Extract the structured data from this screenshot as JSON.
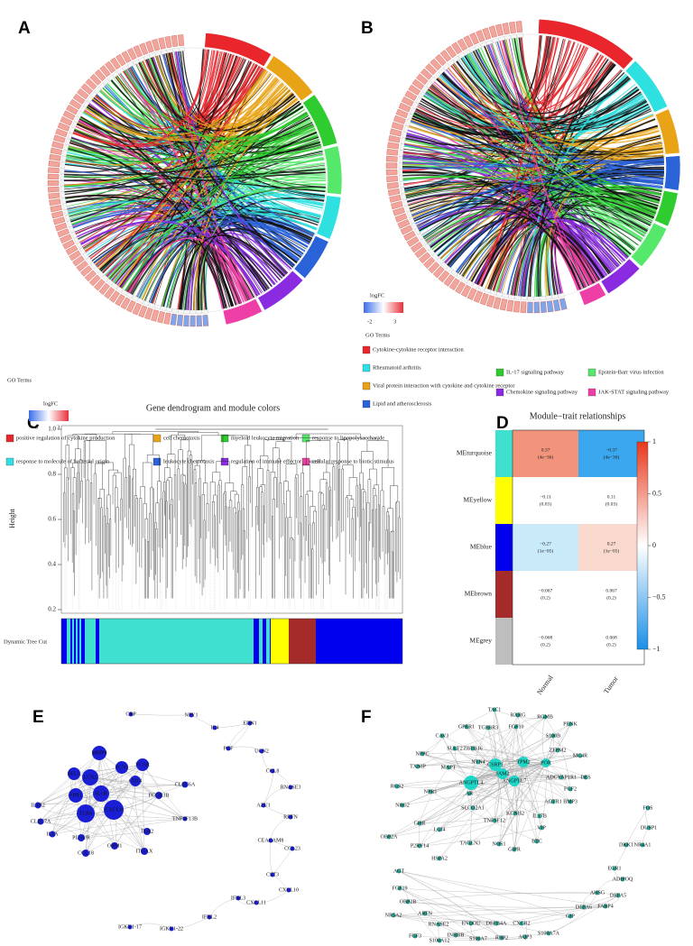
{
  "panels": {
    "A": {
      "label": "A",
      "legend_title": "GO Terms",
      "colorbar_title": "logFC",
      "colorbar_ticks": [
        "-3",
        "3"
      ],
      "terms": [
        {
          "name": "positive regulation of cytokine production",
          "color": "#e8262b"
        },
        {
          "name": "cell chemotaxis",
          "color": "#e8a317"
        },
        {
          "name": "myeloid leukocyte migration",
          "color": "#2ecc2e"
        },
        {
          "name": "response to lipopolysaccharide",
          "color": "#55e86a"
        },
        {
          "name": "response to molecule of bacterial origin",
          "color": "#2fe0e0"
        },
        {
          "name": "leukocyte chemotaxis",
          "color": "#2a62d8"
        },
        {
          "name": "regulation of immune effector process",
          "color": "#8a2be2"
        },
        {
          "name": "cellular response to biotic stimulus",
          "color": "#ee3fa6"
        }
      ]
    },
    "B": {
      "label": "B",
      "legend_title": "GO Terms",
      "colorbar_title": "logFC",
      "colorbar_ticks": [
        "-2",
        "3"
      ],
      "terms": [
        {
          "name": "Cytokine-cytokine receptor interaction",
          "color": "#e8262b"
        },
        {
          "name": "Rheumatoid arthritis",
          "color": "#2fe0e0"
        },
        {
          "name": "Viral protein interaction with cytokine and cytokine receptor",
          "color": "#e8a317"
        },
        {
          "name": "Lipid and atherosclerosis",
          "color": "#2a62d8"
        },
        {
          "name": "IL-17 signaling pathway",
          "color": "#2ecc2e"
        },
        {
          "name": "Epstein-Barr virus infection",
          "color": "#55e86a"
        },
        {
          "name": "Chemokine signaling pathway",
          "color": "#8a2be2"
        },
        {
          "name": "JAK-STAT signaling pathway",
          "color": "#ee3fa6"
        }
      ]
    },
    "C": {
      "label": "C",
      "title": "Gene dendrogram and module colors",
      "y_axis_label": "Height",
      "y_ticks": [
        "1.0",
        "0.8",
        "0.6",
        "0.4",
        "0.2"
      ],
      "color_row_label": "Dynamic Tree Cut"
    },
    "D": {
      "label": "D",
      "title": "Module−trait relationships",
      "traits": [
        "Normal",
        "Tumor"
      ],
      "modules": [
        {
          "name": "MEturquoise",
          "color": "#40e0d0"
        },
        {
          "name": "MEyellow",
          "color": "#ffff00"
        },
        {
          "name": "MEblue",
          "color": "#0000ee"
        },
        {
          "name": "MEbrown",
          "color": "#a52a2a"
        },
        {
          "name": "MEgrey",
          "color": "#bebebe"
        }
      ],
      "cells": [
        [
          {
            "r": "0.37",
            "p": "(4e−36)",
            "color": "#f2937c"
          },
          {
            "r": "−0.37",
            "p": "(4e−36)",
            "color": "#3ba7ef"
          }
        ],
        [
          {
            "r": "−0.11",
            "p": "(0.03)",
            "color": "#ffffff"
          },
          {
            "r": "0.11",
            "p": "(0.03)",
            "color": "#ffffff"
          }
        ],
        [
          {
            "r": "−0.27",
            "p": "(1e−05)",
            "color": "#c9ebf9"
          },
          {
            "r": "0.27",
            "p": "(1e−05)",
            "color": "#f9d8cd"
          }
        ],
        [
          {
            "r": "−0.067",
            "p": "(0.2)",
            "color": "#ffffff"
          },
          {
            "r": "0.067",
            "p": "(0.2)",
            "color": "#ffffff"
          }
        ],
        [
          {
            "r": "−0.068",
            "p": "(0.2)",
            "color": "#ffffff"
          },
          {
            "r": "0.068",
            "p": "(0.2)",
            "color": "#ffffff"
          }
        ]
      ],
      "colorbar_ticks": [
        "1",
        "0.5",
        "0",
        "−0.5",
        "−1"
      ]
    },
    "E": {
      "label": "E",
      "nodes": [
        "CRP",
        "NPY1",
        "IL4",
        "EDN1",
        "PGF",
        "UCN2",
        "CCL8",
        "RNASE3",
        "AZU1",
        "RETN",
        "CEACAM8",
        "CCL23",
        "CST3",
        "CXCL10",
        "CXCL11",
        "IFNL3",
        "IFNL2",
        "IGKV1-22",
        "IGKV1-17",
        "CLEC6A",
        "FCGR3B",
        "TNFSF13B",
        "TLR2",
        "ITGAX",
        "ORM1",
        "CCL18",
        "PLAUR",
        "IL1R2",
        "CLEC7A",
        "IL1A",
        "MMP9",
        "SELL",
        "FCN1",
        "FCAR",
        "CD14",
        "LCN2",
        "FPR1",
        "IL1B",
        "CXCL8",
        "TLR4"
      ]
    },
    "F": {
      "label": "F",
      "nodes": [
        "TAC1",
        "RXRG",
        "RGMB",
        "PENK",
        "GPER1",
        "TGFBR3",
        "FGF10",
        "S100B",
        "CAV1",
        "ZFPM2",
        "MC4R",
        "NPPC",
        "SULT2",
        "ZBTB16",
        "NTN4",
        "CSRP1",
        "TPM2",
        "POR",
        "DES",
        "ADCYAP1R1",
        "JAM2",
        "ANGPTL7",
        "ANGPTL4",
        "TXNIP",
        "MAPT",
        "FGF2",
        "RGS2",
        "NPR1",
        "AR",
        "BMP3",
        "AGTR1",
        "NRG2",
        "SLCO2A1",
        "KCNH2",
        "IL17B",
        "VIP",
        "GHR",
        "TNFSF12",
        "LGI4",
        "BTC",
        "P2RY14",
        "TAGLN3",
        "NOS1",
        "GIPR",
        "HSPA2",
        "OBP2A",
        "FOS",
        "DUSP1",
        "NR4A1",
        "DKK1",
        "EGR1",
        "ADIPOQ",
        "AGT",
        "FGF19",
        "OBP2B",
        "AHSG",
        "DEFA5",
        "NR5A2",
        "ARTN",
        "FABP4",
        "DEFA6",
        "RNASE2",
        "ENDOU",
        "DEFB4A",
        "CXCR2",
        "GIP",
        "FGF3",
        "INHBB",
        "S100A7A",
        "AQP3",
        "RBP2",
        "S100A7",
        "S100A12"
      ]
    }
  }
}
